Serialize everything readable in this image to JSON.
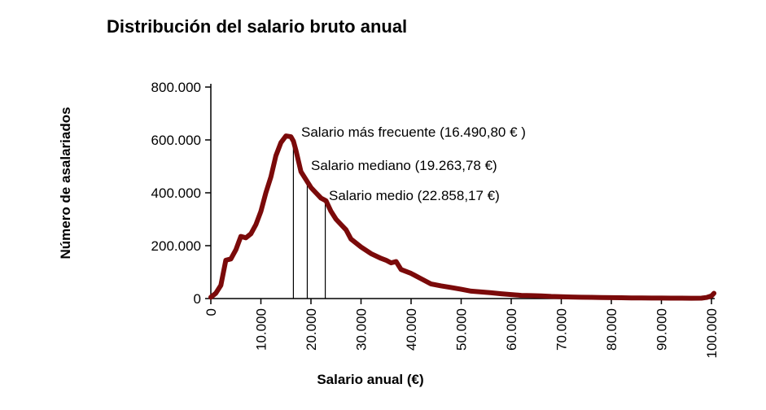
{
  "chart_data": {
    "type": "line",
    "title": "Distribución del salario bruto anual",
    "xlabel": "Salario anual (€)",
    "ylabel": "Número de asalariados",
    "xlim": [
      0,
      100000
    ],
    "ylim": [
      0,
      800000
    ],
    "grid": false,
    "x_ticks": [
      0,
      10000,
      20000,
      30000,
      40000,
      50000,
      60000,
      70000,
      80000,
      90000,
      100000
    ],
    "x_tick_labels": [
      "0",
      "10.000",
      "20.000",
      "30.000",
      "40.000",
      "50.000",
      "60.000",
      "70.000",
      "80.000",
      "90.000",
      "100.000"
    ],
    "y_ticks": [
      0,
      200000,
      400000,
      600000,
      800000
    ],
    "y_tick_labels": [
      "0",
      "200.000",
      "400.000",
      "600.000",
      "800.000"
    ],
    "series": [
      {
        "color": "#7b0a0a",
        "x": [
          0,
          1000,
          2000,
          3000,
          4000,
          5000,
          6000,
          7000,
          8000,
          9000,
          10000,
          11000,
          12000,
          13000,
          14000,
          15000,
          16000,
          16500,
          17000,
          18000,
          19000,
          20000,
          21000,
          22000,
          23000,
          24000,
          25000,
          26000,
          27000,
          28000,
          30000,
          32000,
          34000,
          35000,
          36000,
          37000,
          38000,
          40000,
          42000,
          44000,
          46000,
          48000,
          50000,
          52000,
          54000,
          56000,
          58000,
          60000,
          62000,
          64000,
          66000,
          68000,
          70000,
          72000,
          74000,
          76000,
          78000,
          80000,
          82000,
          84000,
          86000,
          88000,
          90000,
          92000,
          94000,
          96000,
          98000,
          99000,
          100000,
          100500
        ],
        "y": [
          5000,
          20000,
          50000,
          145000,
          150000,
          185000,
          235000,
          230000,
          245000,
          280000,
          330000,
          400000,
          460000,
          540000,
          590000,
          615000,
          612000,
          595000,
          560000,
          480000,
          450000,
          420000,
          400000,
          380000,
          370000,
          330000,
          300000,
          280000,
          260000,
          225000,
          195000,
          170000,
          152000,
          145000,
          135000,
          140000,
          110000,
          95000,
          75000,
          55000,
          48000,
          42000,
          35000,
          28000,
          25000,
          22000,
          18000,
          15000,
          12000,
          11000,
          10000,
          8000,
          7000,
          6000,
          5000,
          4500,
          4000,
          3500,
          3000,
          2500,
          2200,
          2000,
          1800,
          1600,
          1400,
          1200,
          1500,
          4000,
          10000,
          20000
        ]
      }
    ],
    "annotations": [
      {
        "x": 16490.8,
        "text": "Salario más frecuente (16.490,80 € )"
      },
      {
        "x": 19263.78,
        "text": "Salario mediano (19.263,78 €)"
      },
      {
        "x": 22858.17,
        "text": "Salario medio (22.858,17 €)"
      }
    ]
  }
}
